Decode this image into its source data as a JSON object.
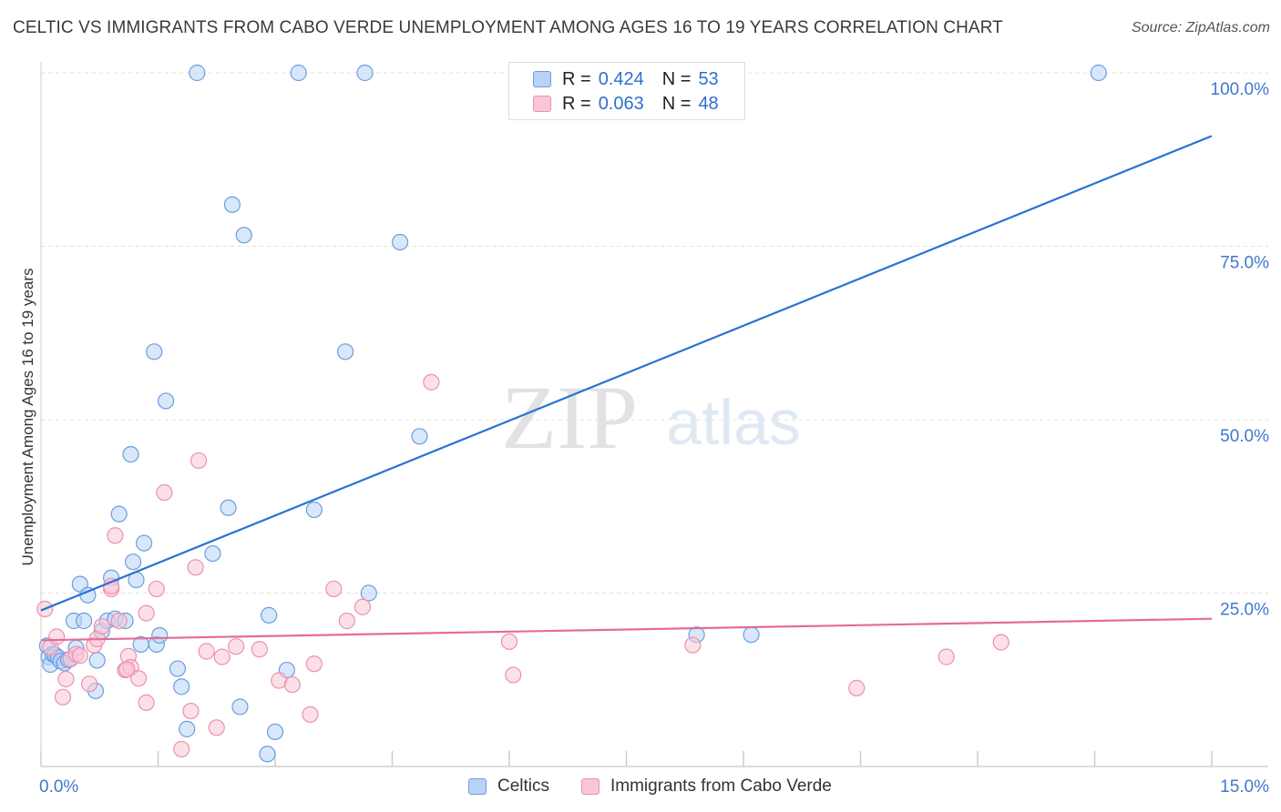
{
  "header": {
    "title": "CELTIC VS IMMIGRANTS FROM CABO VERDE UNEMPLOYMENT AMONG AGES 16 TO 19 YEARS CORRELATION CHART",
    "source": "Source: ZipAtlas.com"
  },
  "watermark": {
    "zip": "ZIP",
    "atlas": "atlas"
  },
  "legend": {
    "r_label": "R =",
    "n_label": "N =",
    "series": [
      {
        "name": "Celtics",
        "r": "0.424",
        "n": "53",
        "color": "#6a9ee0"
      },
      {
        "name": "Immigrants from Cabo Verde",
        "r": "0.063",
        "n": "48",
        "color": "#ec90ae"
      }
    ]
  },
  "chart_data": {
    "type": "scatter",
    "title": "CELTIC VS IMMIGRANTS FROM CABO VERDE UNEMPLOYMENT AMONG AGES 16 TO 19 YEARS CORRELATION CHART",
    "xlabel": "",
    "ylabel": "Unemployment Among Ages 16 to 19 years",
    "xlim": [
      0,
      15
    ],
    "ylim": [
      0,
      100
    ],
    "x_tick_labels": [
      "0.0%",
      "15.0%"
    ],
    "y_tick_labels": [
      "25.0%",
      "50.0%",
      "75.0%",
      "100.0%"
    ],
    "y_ticks": [
      25,
      50,
      75,
      100
    ],
    "grid": true,
    "series": [
      {
        "name": "Celtics",
        "color": "#6a9ee0",
        "fill": "#b8d3f5",
        "trendline": {
          "x": [
            0,
            15
          ],
          "y": [
            22.5,
            90.9
          ]
        },
        "points": [
          [
            0.08,
            17.4
          ],
          [
            0.1,
            15.8
          ],
          [
            0.12,
            14.7
          ],
          [
            0.15,
            16.2
          ],
          [
            0.18,
            16.1
          ],
          [
            0.22,
            15.7
          ],
          [
            0.25,
            15.2
          ],
          [
            0.3,
            14.9
          ],
          [
            0.35,
            15.4
          ],
          [
            0.42,
            21.0
          ],
          [
            0.45,
            17.1
          ],
          [
            0.5,
            26.3
          ],
          [
            0.55,
            21.0
          ],
          [
            0.6,
            24.7
          ],
          [
            0.7,
            10.9
          ],
          [
            0.72,
            15.3
          ],
          [
            0.78,
            19.5
          ],
          [
            0.85,
            21.0
          ],
          [
            0.9,
            27.2
          ],
          [
            0.95,
            21.3
          ],
          [
            1.0,
            36.4
          ],
          [
            1.08,
            21.0
          ],
          [
            1.15,
            45.0
          ],
          [
            1.18,
            29.5
          ],
          [
            1.22,
            26.9
          ],
          [
            1.28,
            17.6
          ],
          [
            1.32,
            32.2
          ],
          [
            1.45,
            59.8
          ],
          [
            1.48,
            17.6
          ],
          [
            1.52,
            18.9
          ],
          [
            1.6,
            52.7
          ],
          [
            1.75,
            14.1
          ],
          [
            1.8,
            11.5
          ],
          [
            1.87,
            5.4
          ],
          [
            2.0,
            100
          ],
          [
            2.2,
            30.7
          ],
          [
            2.4,
            37.3
          ],
          [
            2.45,
            81.0
          ],
          [
            2.55,
            8.6
          ],
          [
            2.6,
            76.6
          ],
          [
            2.9,
            1.8
          ],
          [
            2.92,
            21.8
          ],
          [
            3.0,
            5.0
          ],
          [
            3.15,
            13.9
          ],
          [
            3.3,
            100
          ],
          [
            3.5,
            37.0
          ],
          [
            3.9,
            59.8
          ],
          [
            4.15,
            100
          ],
          [
            4.2,
            25.0
          ],
          [
            4.6,
            75.6
          ],
          [
            4.85,
            47.6
          ],
          [
            8.4,
            19.0
          ],
          [
            9.1,
            19.0
          ],
          [
            13.55,
            100
          ]
        ]
      },
      {
        "name": "Immigrants from Cabo Verde",
        "color": "#ec90ae",
        "fill": "#f9c6d6",
        "trendline": {
          "x": [
            0,
            15
          ],
          "y": [
            18.2,
            21.3
          ]
        },
        "points": [
          [
            0.05,
            22.7
          ],
          [
            0.12,
            17.2
          ],
          [
            0.2,
            18.7
          ],
          [
            0.28,
            10.0
          ],
          [
            0.32,
            12.6
          ],
          [
            0.38,
            15.5
          ],
          [
            0.45,
            16.2
          ],
          [
            0.5,
            16.0
          ],
          [
            0.62,
            11.9
          ],
          [
            0.68,
            17.5
          ],
          [
            0.72,
            18.4
          ],
          [
            0.78,
            20.2
          ],
          [
            0.9,
            25.6
          ],
          [
            0.95,
            33.3
          ],
          [
            1.0,
            21.0
          ],
          [
            1.08,
            13.9
          ],
          [
            1.12,
            15.9
          ],
          [
            1.15,
            14.3
          ],
          [
            1.25,
            12.7
          ],
          [
            1.35,
            22.1
          ],
          [
            1.35,
            9.2
          ],
          [
            1.48,
            25.6
          ],
          [
            1.58,
            39.5
          ],
          [
            1.8,
            2.5
          ],
          [
            1.92,
            8.0
          ],
          [
            1.98,
            28.7
          ],
          [
            2.02,
            44.1
          ],
          [
            2.12,
            16.6
          ],
          [
            2.25,
            5.6
          ],
          [
            2.32,
            15.8
          ],
          [
            2.5,
            17.3
          ],
          [
            2.8,
            16.9
          ],
          [
            3.05,
            12.4
          ],
          [
            3.22,
            11.8
          ],
          [
            3.45,
            7.5
          ],
          [
            3.5,
            14.8
          ],
          [
            3.75,
            25.6
          ],
          [
            3.92,
            21.0
          ],
          [
            4.12,
            23.0
          ],
          [
            5.0,
            55.4
          ],
          [
            6.0,
            18.0
          ],
          [
            6.05,
            13.2
          ],
          [
            8.35,
            17.5
          ],
          [
            10.45,
            11.3
          ],
          [
            11.6,
            15.8
          ],
          [
            12.3,
            17.9
          ],
          [
            0.9,
            26.0
          ],
          [
            1.1,
            14.0
          ]
        ]
      }
    ]
  }
}
